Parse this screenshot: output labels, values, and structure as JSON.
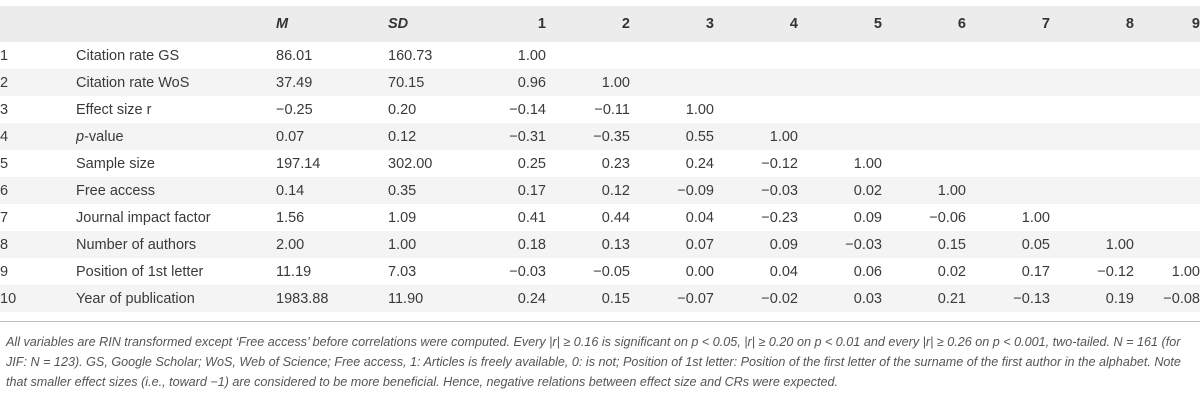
{
  "table": {
    "headers": [
      "",
      "",
      "M",
      "SD",
      "1",
      "2",
      "3",
      "4",
      "5",
      "6",
      "7",
      "8",
      "9"
    ],
    "rows": [
      {
        "idx": "1",
        "var_pre": "Citation rate GS",
        "var_italic": "",
        "var_post": "",
        "m": "86.01",
        "sd": "160.73",
        "c": [
          "1.00",
          "",
          "",
          "",
          "",
          "",
          "",
          "",
          ""
        ]
      },
      {
        "idx": "2",
        "var_pre": "Citation rate WoS",
        "var_italic": "",
        "var_post": "",
        "m": "37.49",
        "sd": "70.15",
        "c": [
          "0.96",
          "1.00",
          "",
          "",
          "",
          "",
          "",
          "",
          ""
        ]
      },
      {
        "idx": "3",
        "var_pre": "Effect size r",
        "var_italic": "",
        "var_post": "",
        "m": "−0.25",
        "sd": "0.20",
        "c": [
          "−0.14",
          "−0.11",
          "1.00",
          "",
          "",
          "",
          "",
          "",
          ""
        ]
      },
      {
        "idx": "4",
        "var_pre": "",
        "var_italic": "p",
        "var_post": "-value",
        "m": "0.07",
        "sd": "0.12",
        "c": [
          "−0.31",
          "−0.35",
          "0.55",
          "1.00",
          "",
          "",
          "",
          "",
          ""
        ]
      },
      {
        "idx": "5",
        "var_pre": "Sample size",
        "var_italic": "",
        "var_post": "",
        "m": "197.14",
        "sd": "302.00",
        "c": [
          "0.25",
          "0.23",
          "0.24",
          "−0.12",
          "1.00",
          "",
          "",
          "",
          ""
        ]
      },
      {
        "idx": "6",
        "var_pre": "Free access",
        "var_italic": "",
        "var_post": "",
        "m": "0.14",
        "sd": "0.35",
        "c": [
          "0.17",
          "0.12",
          "−0.09",
          "−0.03",
          "0.02",
          "1.00",
          "",
          "",
          ""
        ]
      },
      {
        "idx": "7",
        "var_pre": "Journal impact factor",
        "var_italic": "",
        "var_post": "",
        "m": "1.56",
        "sd": "1.09",
        "c": [
          "0.41",
          "0.44",
          "0.04",
          "−0.23",
          "0.09",
          "−0.06",
          "1.00",
          "",
          ""
        ]
      },
      {
        "idx": "8",
        "var_pre": "Number of authors",
        "var_italic": "",
        "var_post": "",
        "m": "2.00",
        "sd": "1.00",
        "c": [
          "0.18",
          "0.13",
          "0.07",
          "0.09",
          "−0.03",
          "0.15",
          "0.05",
          "1.00",
          ""
        ]
      },
      {
        "idx": "9",
        "var_pre": "Position of 1st letter",
        "var_italic": "",
        "var_post": "",
        "m": "11.19",
        "sd": "7.03",
        "c": [
          "−0.03",
          "−0.05",
          "0.00",
          "0.04",
          "0.06",
          "0.02",
          "0.17",
          "−0.12",
          "1.00"
        ]
      },
      {
        "idx": "10",
        "var_pre": "Year of publication",
        "var_italic": "",
        "var_post": "",
        "m": "1983.88",
        "sd": "11.90",
        "c": [
          "0.24",
          "0.15",
          "−0.07",
          "−0.02",
          "0.03",
          "0.21",
          "−0.13",
          "0.19",
          "−0.08"
        ]
      }
    ]
  },
  "footnote": "All variables are RIN transformed except ‘Free access’ before correlations were computed. Every |r| ≥ 0.16 is significant on p < 0.05, |r| ≥ 0.20 on p < 0.01 and every |r| ≥ 0.26 on p < 0.001, two-tailed. N = 161 (for JIF: N = 123). GS, Google Scholar; WoS, Web of Science; Free access, 1: Articles is freely available, 0: is not; Position of 1st letter: Position of the first letter of the surname of the first author in the alphabet. Note that smaller effect sizes (i.e., toward −1) are considered to be more beneficial. Hence, negative relations between effect size and CRs were expected."
}
